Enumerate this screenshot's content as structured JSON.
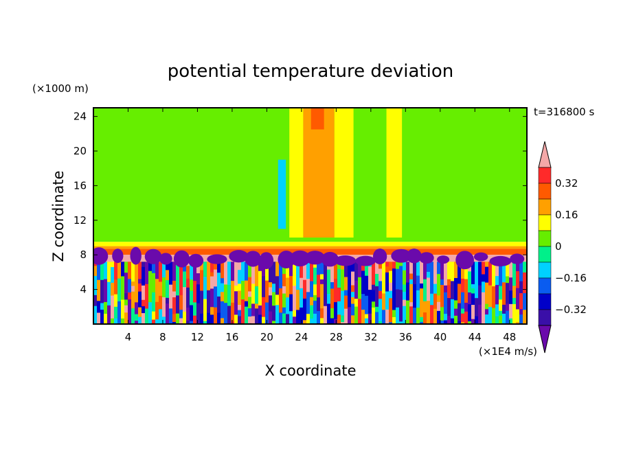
{
  "chart_data": {
    "type": "heatmap",
    "title": "potential temperature deviation",
    "xlabel": "X coordinate",
    "ylabel": "Z coordinate",
    "x_unit": "(×1E4 m/s)",
    "y_unit": "(×1000 m)",
    "time_label": "t=316800 s",
    "xlim": [
      0,
      50
    ],
    "ylim": [
      0,
      25
    ],
    "x_ticks": [
      4,
      8,
      12,
      16,
      20,
      24,
      28,
      32,
      36,
      40,
      44,
      48
    ],
    "y_ticks": [
      4,
      8,
      12,
      16,
      20,
      24
    ],
    "colorbar": {
      "levels": [
        -0.4,
        -0.32,
        -0.24,
        -0.16,
        -0.08,
        0,
        0.08,
        0.16,
        0.24,
        0.32,
        0.4
      ],
      "tick_labels": [
        "0.32",
        "0.16",
        "0",
        "−0.16",
        "−0.32"
      ],
      "tick_values": [
        0.32,
        0.16,
        0,
        -0.16,
        -0.32
      ],
      "colors": [
        "#6a0aab",
        "#3a0fa8",
        "#0000c8",
        "#0a5cf0",
        "#00d2ff",
        "#00f08a",
        "#66ee00",
        "#ffff00",
        "#ffa000",
        "#ff5a00",
        "#ff2a2a",
        "#f4a8a8"
      ]
    },
    "regions": [
      {
        "x": [
          0,
          50
        ],
        "z": [
          10,
          25
        ],
        "value": 0.03
      },
      {
        "x": [
          4.6,
          6.4
        ],
        "z": [
          10,
          25
        ],
        "value": 0.06
      },
      {
        "x": [
          14.6,
          16.6
        ],
        "z": [
          10,
          25
        ],
        "value": 0.06
      },
      {
        "x": [
          22.6,
          24.2
        ],
        "z": [
          10,
          25
        ],
        "value": 0.1
      },
      {
        "x": [
          24.2,
          27.8
        ],
        "z": [
          10,
          25
        ],
        "value": 0.22
      },
      {
        "x": [
          25.1,
          26.6
        ],
        "z": [
          22.5,
          25
        ],
        "value": 0.27
      },
      {
        "x": [
          27.8,
          30.0
        ],
        "z": [
          10,
          25
        ],
        "value": 0.12
      },
      {
        "x": [
          33.8,
          35.6
        ],
        "z": [
          10,
          25
        ],
        "value": 0.12
      },
      {
        "x": [
          35.6,
          41.5
        ],
        "z": [
          10,
          25
        ],
        "value": 0.06
      },
      {
        "x": [
          21.3,
          22.2
        ],
        "z": [
          11,
          19
        ],
        "value": -0.1
      },
      {
        "x": [
          0,
          50
        ],
        "z": [
          9.5,
          10
        ],
        "value": 0.06
      },
      {
        "x": [
          0,
          50
        ],
        "z": [
          9.0,
          9.5
        ],
        "value": 0.14
      },
      {
        "x": [
          0,
          50
        ],
        "z": [
          8.7,
          9.0
        ],
        "value": 0.22
      },
      {
        "x": [
          0,
          50
        ],
        "z": [
          8.0,
          8.7
        ],
        "value": 0.3
      },
      {
        "x": [
          0,
          50
        ],
        "z": [
          7.0,
          8.0
        ],
        "value": 0.42
      },
      {
        "x": [
          0,
          50
        ],
        "z": [
          0,
          7.0
        ],
        "value": -0.25
      }
    ]
  }
}
